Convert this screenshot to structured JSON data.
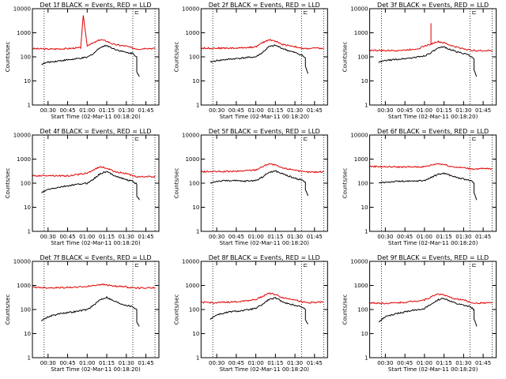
{
  "chart_data": [
    {
      "type": "line",
      "title": "Det 1f BLACK = Events, RED = LLD",
      "xlabel": "Start Time (02-Mar-11 00:18:20)",
      "ylabel": "Counts/sec",
      "yscale": "log",
      "ylim": [
        1,
        10000
      ],
      "xlim": [
        "00:18",
        "01:55"
      ],
      "x_ticks": [
        "00:30",
        "00:45",
        "01:00",
        "01:15",
        "01:30",
        "01:45"
      ],
      "y_ticks": [
        "1",
        "10",
        "100",
        "1000",
        "10000"
      ],
      "vlines": [
        "00:27",
        "01:35",
        "01:52"
      ],
      "marker": "⊏",
      "series": [
        {
          "color": "#e00000",
          "x": [
            "00:18",
            "00:30",
            "00:45",
            "00:55",
            "00:57",
            "01:00",
            "01:05",
            "01:10",
            "01:15",
            "01:20",
            "01:25",
            "01:30",
            "01:35",
            "01:40",
            "01:45",
            "01:52"
          ],
          "values": [
            220,
            210,
            220,
            240,
            5000,
            300,
            380,
            520,
            450,
            330,
            300,
            280,
            230,
            210,
            230,
            220
          ]
        },
        {
          "color": "#000000",
          "x": [
            "00:25",
            "00:30",
            "00:40",
            "00:50",
            "01:00",
            "01:05",
            "01:10",
            "01:15",
            "01:20",
            "01:25",
            "01:30",
            "01:35",
            "01:38",
            "01:38",
            "01:40"
          ],
          "values": [
            50,
            60,
            70,
            80,
            95,
            140,
            250,
            300,
            220,
            180,
            150,
            140,
            100,
            25,
            15
          ]
        }
      ]
    },
    {
      "type": "line",
      "title": "Det 2f BLACK = Events, RED = LLD",
      "xlabel": "Start Time (02-Mar-11 00:18:20)",
      "ylabel": "Counts/sec",
      "yscale": "log",
      "ylim": [
        1,
        10000
      ],
      "xlim": [
        "00:18",
        "01:55"
      ],
      "x_ticks": [
        "00:30",
        "00:45",
        "01:00",
        "01:15",
        "01:30",
        "01:45"
      ],
      "y_ticks": [
        "1",
        "10",
        "100",
        "1000",
        "10000"
      ],
      "vlines": [
        "00:27",
        "01:35",
        "01:52"
      ],
      "marker": "⊏",
      "series": [
        {
          "color": "#e00000",
          "x": [
            "00:18",
            "00:30",
            "00:45",
            "01:00",
            "01:05",
            "01:10",
            "01:15",
            "01:20",
            "01:25",
            "01:30",
            "01:35",
            "01:40",
            "01:45",
            "01:52"
          ],
          "values": [
            230,
            230,
            230,
            260,
            380,
            520,
            450,
            330,
            300,
            270,
            220,
            220,
            230,
            220
          ]
        },
        {
          "color": "#000000",
          "x": [
            "00:25",
            "00:30",
            "00:40",
            "00:50",
            "01:00",
            "01:05",
            "01:10",
            "01:15",
            "01:20",
            "01:25",
            "01:30",
            "01:35",
            "01:38",
            "01:38",
            "01:40"
          ],
          "values": [
            60,
            70,
            80,
            90,
            100,
            150,
            260,
            300,
            230,
            180,
            150,
            120,
            90,
            40,
            20
          ]
        }
      ]
    },
    {
      "type": "line",
      "title": "Det 3f BLACK = Events, RED = LLD",
      "xlabel": "Start Time (02-Mar-11 00:18:20)",
      "ylabel": "Counts/sec",
      "yscale": "log",
      "ylim": [
        1,
        10000
      ],
      "xlim": [
        "00:18",
        "01:55"
      ],
      "x_ticks": [
        "00:30",
        "00:45",
        "01:00",
        "01:15",
        "01:30",
        "01:45"
      ],
      "y_ticks": [
        "1",
        "10",
        "100",
        "1000",
        "10000"
      ],
      "vlines": [
        "00:27",
        "01:35",
        "01:52"
      ],
      "marker": "⊏",
      "series": [
        {
          "color": "#e00000",
          "x": [
            "00:18",
            "00:30",
            "00:45",
            "00:55",
            "01:00",
            "01:05",
            "01:05",
            "01:05",
            "01:10",
            "01:15",
            "01:20",
            "01:25",
            "01:30",
            "01:35",
            "01:40",
            "01:45",
            "01:52"
          ],
          "values": [
            190,
            180,
            190,
            220,
            280,
            340,
            2500,
            340,
            430,
            380,
            300,
            250,
            220,
            190,
            180,
            180,
            180
          ]
        },
        {
          "color": "#000000",
          "x": [
            "00:25",
            "00:30",
            "00:40",
            "00:50",
            "01:00",
            "01:05",
            "01:10",
            "01:15",
            "01:20",
            "01:25",
            "01:30",
            "01:35",
            "01:38",
            "01:38",
            "01:40"
          ],
          "values": [
            60,
            70,
            80,
            90,
            110,
            150,
            220,
            260,
            200,
            160,
            140,
            110,
            80,
            30,
            15
          ]
        }
      ]
    },
    {
      "type": "line",
      "title": "Det 4f BLACK = Events, RED = LLD",
      "xlabel": "Start Time (02-Mar-11 00:18:20)",
      "ylabel": "Counts/sec",
      "yscale": "log",
      "ylim": [
        1,
        10000
      ],
      "xlim": [
        "00:18",
        "01:55"
      ],
      "x_ticks": [
        "00:30",
        "00:45",
        "01:00",
        "01:15",
        "01:30",
        "01:45"
      ],
      "y_ticks": [
        "1",
        "10",
        "100",
        "1000",
        "10000"
      ],
      "vlines": [
        "00:27",
        "01:35",
        "01:52"
      ],
      "marker": "⊏",
      "series": [
        {
          "color": "#e00000",
          "x": [
            "00:18",
            "00:30",
            "00:45",
            "01:00",
            "01:05",
            "01:10",
            "01:15",
            "01:20",
            "01:25",
            "01:30",
            "01:35",
            "01:40",
            "01:45",
            "01:52"
          ],
          "values": [
            200,
            210,
            200,
            260,
            360,
            480,
            420,
            320,
            280,
            250,
            200,
            180,
            190,
            180
          ]
        },
        {
          "color": "#000000",
          "x": [
            "00:25",
            "00:30",
            "00:40",
            "00:50",
            "01:00",
            "01:05",
            "01:10",
            "01:15",
            "01:20",
            "01:25",
            "01:30",
            "01:35",
            "01:38",
            "01:38",
            "01:40"
          ],
          "values": [
            40,
            55,
            70,
            85,
            100,
            150,
            250,
            300,
            220,
            170,
            140,
            120,
            90,
            30,
            20
          ]
        }
      ]
    },
    {
      "type": "line",
      "title": "Det 5f BLACK = Events, RED = LLD",
      "xlabel": "Start Time (02-Mar-11 00:18:20)",
      "ylabel": "Counts/sec",
      "yscale": "log",
      "ylim": [
        1,
        10000
      ],
      "xlim": [
        "00:18",
        "01:55"
      ],
      "x_ticks": [
        "00:30",
        "00:45",
        "01:00",
        "01:15",
        "01:30",
        "01:45"
      ],
      "y_ticks": [
        "1",
        "10",
        "100",
        "1000",
        "10000"
      ],
      "vlines": [
        "00:27",
        "01:35",
        "01:52"
      ],
      "marker": "⊏",
      "series": [
        {
          "color": "#e00000",
          "x": [
            "00:18",
            "00:30",
            "00:45",
            "01:00",
            "01:05",
            "01:10",
            "01:15",
            "01:20",
            "01:25",
            "01:30",
            "01:35",
            "01:40",
            "01:45",
            "01:52"
          ],
          "values": [
            300,
            300,
            310,
            360,
            480,
            650,
            560,
            430,
            390,
            360,
            300,
            290,
            290,
            300
          ]
        },
        {
          "color": "#000000",
          "x": [
            "00:25",
            "00:30",
            "00:40",
            "00:50",
            "01:00",
            "01:05",
            "01:10",
            "01:15",
            "01:20",
            "01:25",
            "01:30",
            "01:35",
            "01:38",
            "01:38",
            "01:40"
          ],
          "values": [
            100,
            120,
            130,
            120,
            130,
            180,
            280,
            320,
            250,
            200,
            160,
            140,
            110,
            50,
            30
          ]
        }
      ]
    },
    {
      "type": "line",
      "title": "Det 6f BLACK = Events, RED = LLD",
      "xlabel": "Start Time (02-Mar-11 00:18:20)",
      "ylabel": "Counts/sec",
      "yscale": "log",
      "ylim": [
        1,
        10000
      ],
      "xlim": [
        "00:18",
        "01:55"
      ],
      "x_ticks": [
        "00:30",
        "00:45",
        "01:00",
        "01:15",
        "01:30",
        "01:45"
      ],
      "y_ticks": [
        "1",
        "10",
        "100",
        "1000",
        "10000"
      ],
      "vlines": [
        "00:27",
        "01:35",
        "01:52"
      ],
      "marker": "⊏",
      "series": [
        {
          "color": "#e00000",
          "x": [
            "00:18",
            "00:30",
            "00:45",
            "01:00",
            "01:05",
            "01:10",
            "01:15",
            "01:20",
            "01:25",
            "01:30",
            "01:35",
            "01:40",
            "01:45",
            "01:52"
          ],
          "values": [
            500,
            480,
            470,
            480,
            560,
            650,
            600,
            500,
            460,
            440,
            400,
            390,
            400,
            400
          ]
        },
        {
          "color": "#000000",
          "x": [
            "00:25",
            "00:30",
            "00:40",
            "00:50",
            "01:00",
            "01:05",
            "01:10",
            "01:15",
            "01:20",
            "01:25",
            "01:30",
            "01:35",
            "01:38",
            "01:38",
            "01:40"
          ],
          "values": [
            100,
            110,
            120,
            120,
            130,
            170,
            230,
            260,
            210,
            170,
            150,
            130,
            100,
            40,
            20
          ]
        }
      ]
    },
    {
      "type": "line",
      "title": "Det 7f BLACK = Events, RED = LLD",
      "xlabel": "Start Time (02-Mar-11 00:18:20)",
      "ylabel": "Counts/sec",
      "yscale": "log",
      "ylim": [
        1,
        10000
      ],
      "xlim": [
        "00:18",
        "01:55"
      ],
      "x_ticks": [
        "00:30",
        "00:45",
        "01:00",
        "01:15",
        "01:30",
        "01:45"
      ],
      "y_ticks": [
        "1",
        "10",
        "100",
        "1000",
        "10000"
      ],
      "vlines": [
        "00:27",
        "01:35",
        "01:52"
      ],
      "marker": "⊏",
      "series": [
        {
          "color": "#e00000",
          "x": [
            "00:18",
            "00:30",
            "00:45",
            "01:00",
            "01:05",
            "01:10",
            "01:15",
            "01:20",
            "01:25",
            "01:30",
            "01:35",
            "01:40",
            "01:45",
            "01:52"
          ],
          "values": [
            850,
            800,
            820,
            900,
            1000,
            1100,
            1050,
            950,
            900,
            870,
            800,
            780,
            800,
            800
          ]
        },
        {
          "color": "#000000",
          "x": [
            "00:25",
            "00:30",
            "00:40",
            "00:50",
            "01:00",
            "01:05",
            "01:10",
            "01:15",
            "01:20",
            "01:25",
            "01:30",
            "01:35",
            "01:38",
            "01:38",
            "01:40"
          ],
          "values": [
            35,
            50,
            70,
            80,
            100,
            150,
            260,
            320,
            230,
            180,
            150,
            130,
            100,
            30,
            20
          ]
        }
      ]
    },
    {
      "type": "line",
      "title": "Det 8f BLACK = Events, RED = LLD",
      "xlabel": "Start Time (02-Mar-11 00:18:20)",
      "ylabel": "Counts/sec",
      "yscale": "log",
      "ylim": [
        1,
        10000
      ],
      "xlim": [
        "00:18",
        "01:55"
      ],
      "x_ticks": [
        "00:30",
        "00:45",
        "01:00",
        "01:15",
        "01:30",
        "01:45"
      ],
      "y_ticks": [
        "1",
        "10",
        "100",
        "1000",
        "10000"
      ],
      "vlines": [
        "00:27",
        "01:35",
        "01:52"
      ],
      "marker": "⊏",
      "series": [
        {
          "color": "#e00000",
          "x": [
            "00:18",
            "00:30",
            "00:45",
            "01:00",
            "01:05",
            "01:10",
            "01:15",
            "01:20",
            "01:25",
            "01:30",
            "01:35",
            "01:40",
            "01:45",
            "01:52"
          ],
          "values": [
            200,
            190,
            210,
            260,
            350,
            480,
            420,
            320,
            280,
            260,
            210,
            190,
            200,
            200
          ]
        },
        {
          "color": "#000000",
          "x": [
            "00:25",
            "00:30",
            "00:40",
            "00:50",
            "01:00",
            "01:05",
            "01:10",
            "01:15",
            "01:20",
            "01:25",
            "01:30",
            "01:35",
            "01:38",
            "01:38",
            "01:40"
          ],
          "values": [
            40,
            60,
            80,
            90,
            110,
            160,
            260,
            300,
            220,
            170,
            150,
            130,
            100,
            40,
            25
          ]
        }
      ]
    },
    {
      "type": "line",
      "title": "Det 9f BLACK = Events, RED = LLD",
      "xlabel": "Start Time (02-Mar-11 00:18:20)",
      "ylabel": "Counts/sec",
      "yscale": "log",
      "ylim": [
        1,
        10000
      ],
      "xlim": [
        "00:18",
        "01:55"
      ],
      "x_ticks": [
        "00:30",
        "00:45",
        "01:00",
        "01:15",
        "01:30",
        "01:45"
      ],
      "y_ticks": [
        "1",
        "10",
        "100",
        "1000",
        "10000"
      ],
      "vlines": [
        "00:27",
        "01:35",
        "01:52"
      ],
      "marker": "⊏",
      "series": [
        {
          "color": "#e00000",
          "x": [
            "00:18",
            "00:30",
            "00:45",
            "01:00",
            "01:05",
            "01:10",
            "01:15",
            "01:20",
            "01:25",
            "01:30",
            "01:35",
            "01:40",
            "01:45",
            "01:52"
          ],
          "values": [
            190,
            180,
            200,
            250,
            330,
            450,
            400,
            310,
            270,
            250,
            200,
            180,
            190,
            190
          ]
        },
        {
          "color": "#000000",
          "x": [
            "00:25",
            "00:30",
            "00:40",
            "00:50",
            "01:00",
            "01:05",
            "01:10",
            "01:15",
            "01:20",
            "01:25",
            "01:30",
            "01:35",
            "01:38",
            "01:38",
            "01:40"
          ],
          "values": [
            30,
            50,
            70,
            90,
            110,
            160,
            250,
            290,
            220,
            170,
            150,
            130,
            100,
            40,
            20
          ]
        }
      ]
    }
  ]
}
